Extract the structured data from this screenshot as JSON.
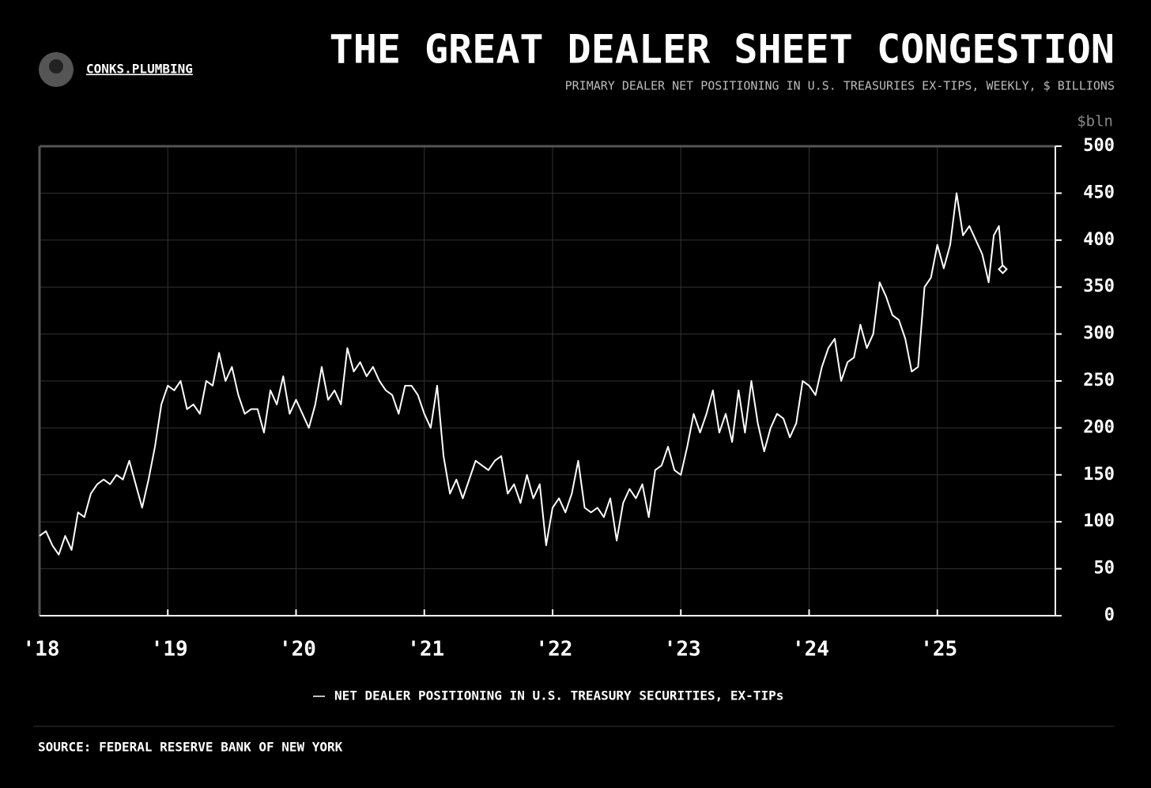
{
  "brand": "CONKS.PLUMBING",
  "source": "SOURCE: FEDERAL RESERVE BANK OF NEW YORK",
  "chart_data": {
    "type": "line",
    "title": "THE GREAT DEALER SHEET CONGESTION",
    "subtitle": "PRIMARY DEALER NET POSITIONING IN U.S. TREASURIES EX-TIPS, WEEKLY, $ BILLIONS",
    "y_label": "$bln",
    "xlim": [
      2018,
      2025.92
    ],
    "xticks": [
      {
        "value": 2018,
        "label": "'18"
      },
      {
        "value": 2019,
        "label": "'19"
      },
      {
        "value": 2020,
        "label": "'20"
      },
      {
        "value": 2021,
        "label": "'21"
      },
      {
        "value": 2022,
        "label": "'22"
      },
      {
        "value": 2023,
        "label": "'23"
      },
      {
        "value": 2024,
        "label": "'24"
      },
      {
        "value": 2025,
        "label": "'25"
      }
    ],
    "ylim": [
      0,
      500
    ],
    "yticks": [
      0,
      50,
      100,
      150,
      200,
      250,
      300,
      350,
      400,
      450,
      500
    ],
    "grid": true,
    "legend": "bottom",
    "x": [
      2018,
      2018.05,
      2018.1,
      2018.15,
      2018.2,
      2018.25,
      2018.3,
      2018.35,
      2018.4,
      2018.45,
      2018.5,
      2018.55,
      2018.6,
      2018.65,
      2018.7,
      2018.75,
      2018.8,
      2018.85,
      2018.9,
      2018.95,
      2019,
      2019.05,
      2019.1,
      2019.15,
      2019.2,
      2019.25,
      2019.3,
      2019.35,
      2019.4,
      2019.45,
      2019.5,
      2019.55,
      2019.6,
      2019.65,
      2019.7,
      2019.75,
      2019.8,
      2019.85,
      2019.9,
      2019.95,
      2020,
      2020.05,
      2020.1,
      2020.15,
      2020.2,
      2020.25,
      2020.3,
      2020.35,
      2020.4,
      2020.45,
      2020.5,
      2020.55,
      2020.6,
      2020.65,
      2020.7,
      2020.75,
      2020.8,
      2020.85,
      2020.9,
      2020.95,
      2021,
      2021.05,
      2021.1,
      2021.15,
      2021.2,
      2021.25,
      2021.3,
      2021.35,
      2021.4,
      2021.45,
      2021.5,
      2021.55,
      2021.6,
      2021.65,
      2021.7,
      2021.75,
      2021.8,
      2021.85,
      2021.9,
      2021.95,
      2022,
      2022.05,
      2022.1,
      2022.15,
      2022.2,
      2022.25,
      2022.3,
      2022.35,
      2022.4,
      2022.45,
      2022.5,
      2022.55,
      2022.6,
      2022.65,
      2022.7,
      2022.75,
      2022.8,
      2022.85,
      2022.9,
      2022.95,
      2023,
      2023.05,
      2023.1,
      2023.15,
      2023.2,
      2023.25,
      2023.3,
      2023.35,
      2023.4,
      2023.45,
      2023.5,
      2023.55,
      2023.6,
      2023.65,
      2023.7,
      2023.75,
      2023.8,
      2023.85,
      2023.9,
      2023.95,
      2024,
      2024.05,
      2024.1,
      2024.15,
      2024.2,
      2024.25,
      2024.3,
      2024.35,
      2024.4,
      2024.45,
      2024.5,
      2024.55,
      2024.6,
      2024.65,
      2024.7,
      2024.75,
      2024.8,
      2024.85,
      2024.9,
      2024.95,
      2025,
      2025.05,
      2025.1,
      2025.15,
      2025.2,
      2025.25,
      2025.3,
      2025.35,
      2025.4,
      2025.44,
      2025.48,
      2025.51
    ],
    "series": [
      {
        "name": "NET DEALER POSITIONING IN U.S. TREASURY SECURITIES, EX-TIPs",
        "color": "#ffffff",
        "values": [
          85,
          90,
          75,
          65,
          85,
          70,
          110,
          105,
          130,
          140,
          145,
          140,
          150,
          145,
          165,
          140,
          115,
          145,
          180,
          225,
          245,
          240,
          250,
          220,
          225,
          215,
          250,
          245,
          280,
          250,
          265,
          235,
          215,
          220,
          220,
          195,
          240,
          225,
          255,
          215,
          230,
          215,
          200,
          225,
          265,
          230,
          240,
          225,
          285,
          260,
          270,
          255,
          265,
          250,
          240,
          235,
          215,
          245,
          245,
          235,
          215,
          200,
          245,
          170,
          130,
          145,
          125,
          145,
          165,
          160,
          155,
          165,
          170,
          130,
          140,
          120,
          150,
          125,
          140,
          75,
          115,
          125,
          110,
          130,
          165,
          115,
          110,
          115,
          105,
          125,
          80,
          120,
          135,
          125,
          140,
          105,
          155,
          160,
          180,
          155,
          150,
          180,
          215,
          195,
          215,
          240,
          195,
          215,
          185,
          240,
          195,
          250,
          205,
          175,
          200,
          215,
          210,
          190,
          205,
          250,
          245,
          235,
          265,
          285,
          295,
          250,
          270,
          275,
          310,
          285,
          300,
          355,
          340,
          320,
          315,
          295,
          260,
          265,
          350,
          360,
          395,
          370,
          395,
          450,
          405,
          415,
          400,
          385,
          355,
          405,
          415,
          369
        ]
      }
    ]
  }
}
